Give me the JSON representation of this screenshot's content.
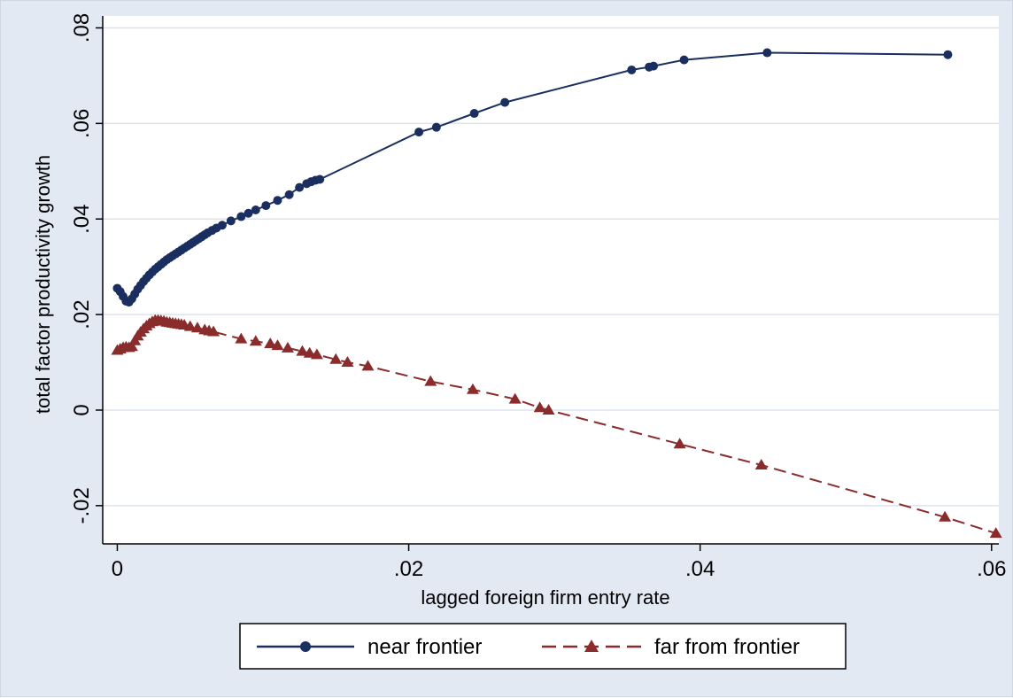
{
  "chart_data": {
    "type": "line",
    "title": "",
    "xlabel": "lagged foreign firm entry rate",
    "ylabel": "total factor productivity growth",
    "xlim": [
      -0.001,
      0.0605
    ],
    "ylim": [
      -0.028,
      0.0825
    ],
    "x_ticks": [
      0,
      0.02,
      0.04,
      0.06
    ],
    "x_tick_labels": [
      "0",
      ".02",
      ".04",
      ".06"
    ],
    "y_ticks": [
      -0.02,
      0,
      0.02,
      0.04,
      0.06,
      0.08
    ],
    "y_tick_labels": [
      "-.02",
      "0",
      ".02",
      ".04",
      ".06",
      ".08"
    ],
    "grid": "horizontal",
    "legend": "bottom",
    "series": [
      {
        "name": "near frontier",
        "color": "#1a2f5f",
        "marker": "circle",
        "line_style": "solid",
        "points": [
          [
            0,
            0.0255
          ],
          [
            0.0002,
            0.0248
          ],
          [
            0.0004,
            0.0238
          ],
          [
            0.0006,
            0.0228
          ],
          [
            0.0008,
            0.0226
          ],
          [
            0.001,
            0.0233
          ],
          [
            0.0012,
            0.0243
          ],
          [
            0.0014,
            0.0253
          ],
          [
            0.0016,
            0.0261
          ],
          [
            0.0018,
            0.0269
          ],
          [
            0.002,
            0.0276
          ],
          [
            0.0022,
            0.0283
          ],
          [
            0.0024,
            0.0289
          ],
          [
            0.0026,
            0.0295
          ],
          [
            0.0028,
            0.03
          ],
          [
            0.003,
            0.0305
          ],
          [
            0.0032,
            0.031
          ],
          [
            0.0034,
            0.0315
          ],
          [
            0.0036,
            0.0319
          ],
          [
            0.0038,
            0.0323
          ],
          [
            0.004,
            0.0327
          ],
          [
            0.0042,
            0.0331
          ],
          [
            0.0044,
            0.0335
          ],
          [
            0.0046,
            0.0339
          ],
          [
            0.0048,
            0.0343
          ],
          [
            0.005,
            0.0347
          ],
          [
            0.0052,
            0.0351
          ],
          [
            0.0054,
            0.0355
          ],
          [
            0.0056,
            0.0359
          ],
          [
            0.0058,
            0.0363
          ],
          [
            0.006,
            0.0367
          ],
          [
            0.0062,
            0.0371
          ],
          [
            0.0065,
            0.0376
          ],
          [
            0.0068,
            0.0381
          ],
          [
            0.0072,
            0.0387
          ],
          [
            0.0078,
            0.0396
          ],
          [
            0.0085,
            0.0405
          ],
          [
            0.009,
            0.0412
          ],
          [
            0.0095,
            0.0419
          ],
          [
            0.0102,
            0.0428
          ],
          [
            0.011,
            0.0439
          ],
          [
            0.0118,
            0.0451
          ],
          [
            0.0125,
            0.0466
          ],
          [
            0.013,
            0.0474
          ],
          [
            0.0133,
            0.0478
          ],
          [
            0.0136,
            0.0481
          ],
          [
            0.0139,
            0.0483
          ],
          [
            0.0207,
            0.0582
          ],
          [
            0.0219,
            0.0592
          ],
          [
            0.0245,
            0.0621
          ],
          [
            0.0266,
            0.0644
          ],
          [
            0.0353,
            0.0712
          ],
          [
            0.0365,
            0.0718
          ],
          [
            0.0368,
            0.072
          ],
          [
            0.0389,
            0.0733
          ],
          [
            0.0446,
            0.0748
          ],
          [
            0.057,
            0.0744
          ]
        ]
      },
      {
        "name": "far from frontier",
        "color": "#8b2c2c",
        "marker": "triangle",
        "line_style": "dashed",
        "points": [
          [
            0,
            0.0125
          ],
          [
            0.0002,
            0.0128
          ],
          [
            0.0004,
            0.0131
          ],
          [
            0.0006,
            0.0132
          ],
          [
            0.0008,
            0.0131
          ],
          [
            0.001,
            0.0133
          ],
          [
            0.0012,
            0.0145
          ],
          [
            0.0014,
            0.0155
          ],
          [
            0.0016,
            0.0163
          ],
          [
            0.0018,
            0.017
          ],
          [
            0.002,
            0.0176
          ],
          [
            0.0022,
            0.0181
          ],
          [
            0.0024,
            0.0185
          ],
          [
            0.0026,
            0.0188
          ],
          [
            0.0028,
            0.0188
          ],
          [
            0.003,
            0.0187
          ],
          [
            0.0032,
            0.0186
          ],
          [
            0.0034,
            0.0184
          ],
          [
            0.0036,
            0.0183
          ],
          [
            0.0038,
            0.0182
          ],
          [
            0.004,
            0.0181
          ],
          [
            0.0042,
            0.018
          ],
          [
            0.0044,
            0.0179
          ],
          [
            0.0046,
            0.0178
          ],
          [
            0.005,
            0.0175
          ],
          [
            0.0055,
            0.0172
          ],
          [
            0.006,
            0.0168
          ],
          [
            0.0063,
            0.0166
          ],
          [
            0.0066,
            0.0164
          ],
          [
            0.0085,
            0.0149
          ],
          [
            0.0095,
            0.0144
          ],
          [
            0.0105,
            0.0139
          ],
          [
            0.011,
            0.0135
          ],
          [
            0.0117,
            0.013
          ],
          [
            0.0127,
            0.0123
          ],
          [
            0.0132,
            0.0119
          ],
          [
            0.0137,
            0.0116
          ],
          [
            0.015,
            0.0106
          ],
          [
            0.0158,
            0.01
          ],
          [
            0.0172,
            0.0092
          ],
          [
            0.0215,
            0.006
          ],
          [
            0.0244,
            0.0043
          ],
          [
            0.0273,
            0.0023
          ],
          [
            0.029,
            0.0005
          ],
          [
            0.0296,
            0
          ],
          [
            0.0386,
            -0.0071
          ],
          [
            0.0442,
            -0.0115
          ],
          [
            0.0568,
            -0.0224
          ],
          [
            0.0603,
            -0.0258
          ]
        ]
      }
    ]
  }
}
